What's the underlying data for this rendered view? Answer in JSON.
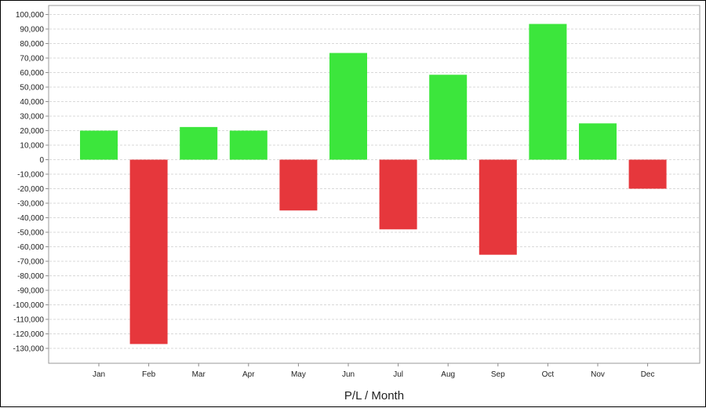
{
  "chart_data": {
    "type": "bar",
    "title": "",
    "xlabel": "P/L / Month",
    "ylabel": "",
    "categories": [
      "Jan",
      "Feb",
      "Mar",
      "Apr",
      "May",
      "Jun",
      "Jul",
      "Aug",
      "Sep",
      "Oct",
      "Nov",
      "Dec"
    ],
    "values": [
      20000,
      -127000,
      22500,
      20000,
      -35000,
      73500,
      -48000,
      58500,
      -65500,
      93500,
      25000,
      -20000
    ],
    "ylim": [
      -138000,
      106000
    ],
    "yticks": [
      100000,
      90000,
      80000,
      70000,
      60000,
      50000,
      40000,
      30000,
      20000,
      10000,
      0,
      -10000,
      -20000,
      -30000,
      -40000,
      -50000,
      -60000,
      -70000,
      -80000,
      -90000,
      -100000,
      -110000,
      -120000,
      -130000
    ],
    "ytick_labels": [
      "100,000",
      "90,000",
      "80,000",
      "70,000",
      "60,000",
      "50,000",
      "40,000",
      "30,000",
      "20,000",
      "10,000",
      "0",
      "-10,000",
      "-20,000",
      "-30,000",
      "-40,000",
      "-50,000",
      "-60,000",
      "-70,000",
      "-80,000",
      "-90,000",
      "-100,000",
      "-110,000",
      "-120,000",
      "-130,000"
    ],
    "grid": true,
    "legend": "none",
    "colors": {
      "positive": "#3ce63c",
      "negative": "#e6373c",
      "grid": "#d9d9d9",
      "axis": "#8c8c8c"
    }
  }
}
